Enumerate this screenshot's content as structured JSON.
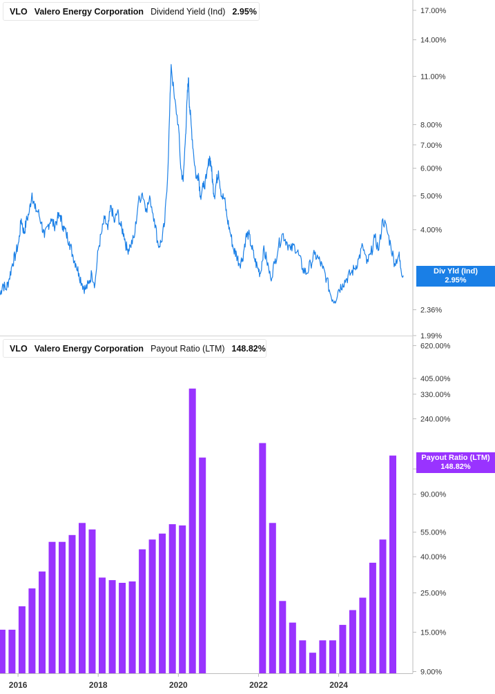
{
  "colors": {
    "div_yield": "#1a7fe6",
    "payout": "#9933ff",
    "axis": "#bbbbbb",
    "tick_text": "#333333"
  },
  "chart_data": [
    {
      "type": "line",
      "legend": {
        "ticker": "VLO",
        "company": "Valero Energy Corporation",
        "metric": "Dividend Yield (Ind)",
        "value": "2.95%"
      },
      "tag": {
        "label": "Div Yld (Ind)",
        "value": "2.95%"
      },
      "y_scale": "log",
      "ylim": [
        1.99,
        18.2
      ],
      "y_ticks": [
        {
          "value": 17.0,
          "label": "17.00%"
        },
        {
          "value": 14.0,
          "label": "14.00%"
        },
        {
          "value": 11.0,
          "label": "11.00%"
        },
        {
          "value": 8.0,
          "label": "8.00%"
        },
        {
          "value": 7.0,
          "label": "7.00%"
        },
        {
          "value": 6.0,
          "label": "6.00%"
        },
        {
          "value": 5.0,
          "label": "5.00%"
        },
        {
          "value": 4.0,
          "label": "4.00%"
        },
        {
          "value": 2.36,
          "label": "2.36%"
        },
        {
          "value": 1.99,
          "label": "1.99%"
        }
      ],
      "x": [
        2015.55,
        2015.62,
        2015.7,
        2015.78,
        2015.86,
        2015.94,
        2016.02,
        2016.08,
        2016.15,
        2016.2,
        2016.28,
        2016.35,
        2016.42,
        2016.5,
        2016.58,
        2016.66,
        2016.74,
        2016.82,
        2016.9,
        2016.98,
        2017.05,
        2017.12,
        2017.2,
        2017.28,
        2017.36,
        2017.44,
        2017.52,
        2017.6,
        2017.68,
        2017.76,
        2017.84,
        2017.92,
        2018.0,
        2018.08,
        2018.16,
        2018.24,
        2018.32,
        2018.4,
        2018.48,
        2018.56,
        2018.64,
        2018.72,
        2018.8,
        2018.9,
        2019.0,
        2019.1,
        2019.2,
        2019.3,
        2019.4,
        2019.5,
        2019.58,
        2019.66,
        2019.74,
        2019.82,
        2019.9,
        2020.0,
        2020.06,
        2020.12,
        2020.18,
        2020.22,
        2020.25,
        2020.28,
        2020.32,
        2020.38,
        2020.45,
        2020.5,
        2020.55,
        2020.62,
        2020.7,
        2020.78,
        2020.82,
        2020.86,
        2020.9,
        2020.95,
        2021.0,
        2021.08,
        2021.15,
        2021.22,
        2021.3,
        2021.38,
        2021.45,
        2021.52,
        2021.6,
        2021.68,
        2021.75,
        2021.82,
        2021.9,
        2021.98,
        2022.05,
        2022.12,
        2022.2,
        2022.3,
        2022.4,
        2022.5,
        2022.6,
        2022.7,
        2022.8,
        2022.9,
        2023.0,
        2023.1,
        2023.2,
        2023.3,
        2023.4,
        2023.5,
        2023.6,
        2023.7,
        2023.8,
        2023.9,
        2024.0,
        2024.1,
        2024.2,
        2024.3,
        2024.4,
        2024.5,
        2024.6,
        2024.7,
        2024.8,
        2024.9,
        2025.0,
        2025.1,
        2025.2,
        2025.3,
        2025.4,
        2025.5,
        2025.55,
        2025.62
      ],
      "values": [
        2.6,
        2.8,
        2.7,
        2.9,
        3.2,
        3.4,
        3.7,
        4.3,
        3.9,
        4.2,
        4.5,
        5.1,
        4.6,
        4.5,
        4.2,
        3.8,
        4.1,
        4.3,
        4.1,
        4.3,
        4.4,
        4.1,
        3.9,
        3.7,
        3.4,
        3.2,
        3.0,
        2.8,
        2.7,
        2.8,
        3.0,
        2.8,
        3.5,
        3.9,
        4.3,
        4.0,
        4.7,
        4.2,
        4.5,
        4.1,
        3.9,
        3.5,
        3.6,
        3.8,
        4.8,
        5.1,
        4.6,
        4.9,
        4.3,
        3.6,
        3.7,
        4.2,
        6.0,
        11.9,
        9.5,
        8.0,
        6.0,
        5.5,
        7.5,
        9.5,
        10.9,
        9.0,
        8.0,
        6.6,
        5.6,
        5.8,
        5.0,
        5.3,
        5.6,
        6.5,
        6.1,
        5.4,
        5.0,
        5.5,
        5.9,
        5.0,
        4.9,
        4.3,
        3.9,
        3.5,
        3.4,
        3.2,
        3.3,
        3.8,
        3.9,
        3.6,
        3.3,
        3.1,
        3.0,
        3.5,
        3.3,
        2.9,
        3.2,
        3.6,
        3.9,
        3.7,
        3.5,
        3.6,
        3.4,
        3.1,
        3.0,
        3.2,
        3.4,
        3.3,
        3.1,
        2.9,
        2.6,
        2.5,
        2.7,
        2.8,
        2.9,
        3.0,
        3.1,
        3.3,
        3.6,
        3.2,
        3.4,
        3.8,
        3.5,
        4.3,
        4.0,
        3.6,
        3.2,
        3.4,
        3.1,
        2.95
      ]
    },
    {
      "type": "bar",
      "legend": {
        "ticker": "VLO",
        "company": "Valero Energy Corporation",
        "metric": "Payout Ratio (LTM)",
        "value": "148.82%"
      },
      "tag": {
        "label": "Payout Ratio (LTM)",
        "value": "148.82%"
      },
      "y_scale": "log",
      "ylim": [
        8.8,
        700
      ],
      "y_ticks": [
        {
          "value": 620,
          "label": "620.00%"
        },
        {
          "value": 405,
          "label": "405.00%"
        },
        {
          "value": 330,
          "label": "330.00%"
        },
        {
          "value": 240,
          "label": "240.00%"
        },
        {
          "value": 125,
          "label": "125.00%"
        },
        {
          "value": 90,
          "label": "90.00%"
        },
        {
          "value": 55,
          "label": "55.00%"
        },
        {
          "value": 40,
          "label": "40.00%"
        },
        {
          "value": 25,
          "label": "25.00%"
        },
        {
          "value": 15,
          "label": "15.00%"
        },
        {
          "value": 9,
          "label": "9.00%"
        }
      ],
      "x": [
        2015.6,
        2015.85,
        2016.1,
        2016.35,
        2016.6,
        2016.85,
        2017.1,
        2017.35,
        2017.6,
        2017.85,
        2018.1,
        2018.35,
        2018.6,
        2018.85,
        2019.1,
        2019.35,
        2019.6,
        2019.85,
        2020.1,
        2020.35,
        2020.6,
        2020.85,
        2021.1,
        2021.35,
        2021.6,
        2021.85,
        2022.1,
        2022.35,
        2022.6,
        2022.85,
        2023.1,
        2023.35,
        2023.6,
        2023.85,
        2024.1,
        2024.35,
        2024.6,
        2024.85,
        2025.1,
        2025.35
      ],
      "values": [
        15.5,
        15.5,
        21,
        26.5,
        33,
        48.5,
        48.5,
        53,
        62,
        57,
        30.5,
        29.5,
        28.5,
        29,
        44,
        50,
        54,
        61,
        60,
        355,
        145,
        0,
        0,
        0,
        0,
        0,
        175,
        62,
        22.5,
        17,
        13.5,
        11.5,
        13.5,
        13.5,
        16.5,
        20,
        23.5,
        37,
        50,
        148.82
      ]
    }
  ],
  "x_axis": {
    "range": [
      2015.55,
      2025.85
    ],
    "ticks": [
      {
        "value": 2016,
        "label": "2016"
      },
      {
        "value": 2018,
        "label": "2018"
      },
      {
        "value": 2020,
        "label": "2020"
      },
      {
        "value": 2022,
        "label": "2022"
      },
      {
        "value": 2024,
        "label": "2024"
      }
    ]
  }
}
